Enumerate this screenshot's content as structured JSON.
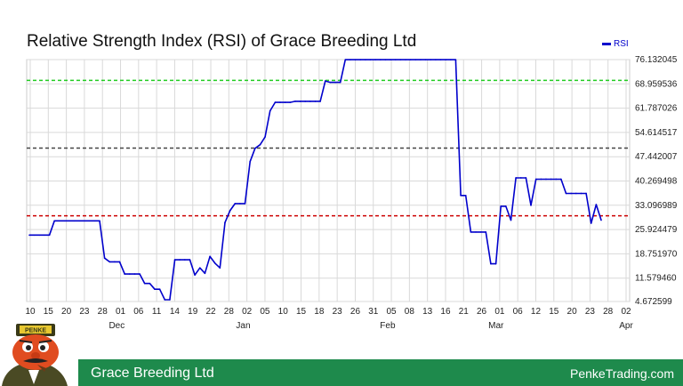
{
  "header": {
    "title": "Relative Strength Index (RSI) of Grace Breeding Ltd"
  },
  "legend": {
    "label": "RSI"
  },
  "footer": {
    "company": "Grace Breeding Ltd",
    "site": "PenkeTrading.com"
  },
  "logo": {
    "text": "PENKE"
  },
  "colors": {
    "line": "#0000cc",
    "upper": "#22cc22",
    "middle": "#444444",
    "lower": "#cc0000",
    "footer": "#1e8a4c",
    "grid": "#d9d9d9"
  },
  "chart_data": {
    "type": "line",
    "title": "Relative Strength Index (RSI) of Grace Breeding Ltd",
    "ylim": [
      4.672599,
      76.132045
    ],
    "y_ticks": [
      "76.132045",
      "68.959536",
      "61.787026",
      "54.614517",
      "47.442007",
      "40.269498",
      "33.096989",
      "25.924479",
      "18.751970",
      "11.579460",
      "4.672599"
    ],
    "x_ticks": [
      "10",
      "15",
      "20",
      "23",
      "28",
      "01",
      "06",
      "11",
      "14",
      "19",
      "22",
      "28",
      "02",
      "05",
      "10",
      "15",
      "18",
      "23",
      "26",
      "31",
      "05",
      "08",
      "13",
      "16",
      "21",
      "26",
      "01",
      "06",
      "12",
      "15",
      "20",
      "23",
      "28",
      "02"
    ],
    "month_labels": [
      {
        "label": "Dec",
        "after_tick": 5
      },
      {
        "label": "Jan",
        "after_tick": 12
      },
      {
        "label": "Feb",
        "after_tick": 20
      },
      {
        "label": "Mar",
        "after_tick": 26
      },
      {
        "label": "Apr",
        "after_tick": 33
      }
    ],
    "reference_lines": [
      {
        "name": "upper",
        "value": 70
      },
      {
        "name": "middle",
        "value": 50
      },
      {
        "name": "lower",
        "value": 30
      }
    ],
    "grid": true,
    "legend_position": "top-right",
    "series": [
      {
        "name": "RSI",
        "values": [
          24.3,
          24.3,
          24.3,
          24.3,
          24.3,
          28.5,
          28.5,
          28.5,
          28.5,
          28.5,
          28.5,
          28.5,
          28.5,
          28.5,
          28.5,
          17.5,
          16.4,
          16.4,
          16.4,
          12.8,
          12.8,
          12.8,
          12.8,
          10.0,
          10.0,
          8.3,
          8.3,
          5.2,
          5.2,
          17.0,
          17.0,
          17.0,
          17.0,
          12.5,
          14.6,
          13.0,
          18.0,
          16.0,
          14.6,
          28.0,
          31.5,
          33.6,
          33.6,
          33.6,
          46.0,
          49.9,
          51.0,
          53.3,
          61.0,
          63.5,
          63.5,
          63.5,
          63.5,
          63.8,
          63.8,
          63.8,
          63.8,
          63.8,
          63.8,
          69.8,
          69.4,
          69.4,
          69.4,
          76.1,
          76.1,
          76.1,
          76.1,
          76.1,
          76.1,
          76.1,
          76.1,
          76.1,
          76.1,
          76.1,
          76.1,
          76.1,
          76.1,
          76.1,
          76.1,
          76.1,
          76.1,
          76.1,
          76.1,
          76.1,
          76.1,
          76.1,
          36.0,
          36.0,
          25.2,
          25.2,
          25.2,
          25.2,
          15.8,
          15.8,
          32.8,
          32.8,
          28.7,
          41.2,
          41.2,
          41.2,
          33.1,
          40.8,
          40.8,
          40.8,
          40.8,
          40.8,
          40.8,
          36.6,
          36.6,
          36.6,
          36.6,
          36.6,
          27.8,
          33.3,
          28.7
        ]
      }
    ]
  }
}
